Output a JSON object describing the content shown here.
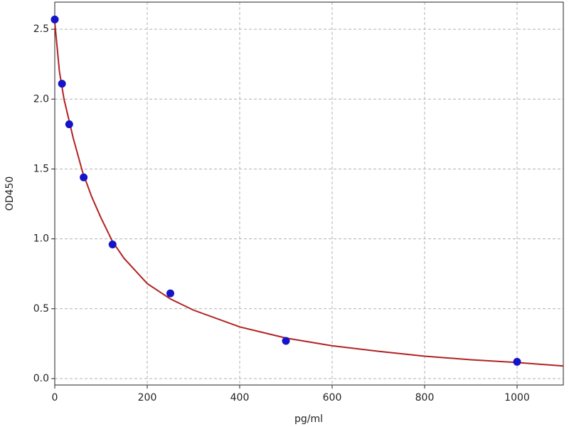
{
  "chart_data": {
    "type": "scatter",
    "xlabel": "pg/ml",
    "ylabel": "OD450",
    "xlim": [
      0,
      1100
    ],
    "xticks": [
      0,
      200,
      400,
      600,
      800,
      1000
    ],
    "ylim": [
      -0.046,
      2.694
    ],
    "yticks": [
      {
        "value": 0,
        "label": "0.0"
      },
      0.5,
      {
        "value": 1,
        "label": "1.0"
      },
      1.5,
      {
        "value": 2,
        "label": "2.0"
      },
      2.5
    ],
    "grid": true,
    "series": [
      {
        "kind": "scatter",
        "color": "#1414c8",
        "x": [
          0,
          15.6,
          31.25,
          62.5,
          125,
          250,
          500,
          1000
        ],
        "values": [
          2.57,
          2.11,
          1.82,
          1.44,
          0.96,
          0.61,
          0.27,
          0.12
        ]
      },
      {
        "kind": "line",
        "color": "#b22222",
        "x": [
          0,
          10,
          20,
          40,
          60,
          80,
          100,
          125,
          150,
          200,
          250,
          300,
          400,
          500,
          600,
          700,
          800,
          900,
          1000,
          1100
        ],
        "values": [
          2.55,
          2.2,
          2.0,
          1.72,
          1.48,
          1.3,
          1.15,
          0.98,
          0.86,
          0.68,
          0.57,
          0.49,
          0.37,
          0.29,
          0.235,
          0.195,
          0.16,
          0.135,
          0.115,
          0.09
        ]
      }
    ]
  }
}
